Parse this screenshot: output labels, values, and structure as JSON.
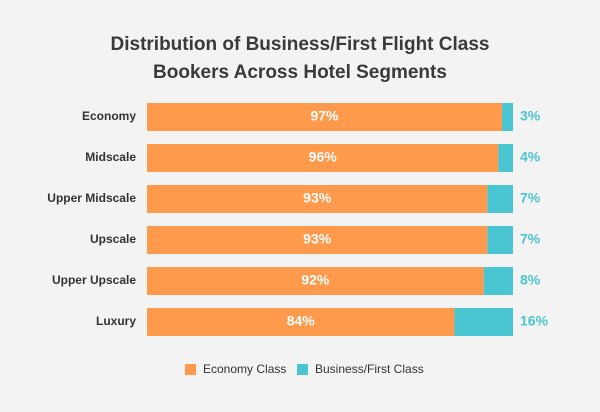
{
  "chart_data": {
    "type": "stacked-bar-horizontal",
    "title": [
      "Distribution of Business/First Flight Class",
      "Bookers Across Hotel Segments"
    ],
    "categories": [
      "Economy",
      "Midscale",
      "Upper Midscale",
      "Upscale",
      "Upper Upscale",
      "Luxury"
    ],
    "series": [
      {
        "name": "Economy Class",
        "color": "#ff9a4d",
        "values": [
          97,
          96,
          93,
          93,
          92,
          84
        ],
        "value_labels": [
          "97%",
          "96%",
          "93%",
          "93%",
          "92%",
          "84%"
        ]
      },
      {
        "name": "Business/First Class",
        "color": "#4ac6d2",
        "values": [
          3,
          4,
          7,
          7,
          8,
          16
        ],
        "value_labels": [
          "3%",
          "4%",
          "7%",
          "7%",
          "8%",
          "16%"
        ]
      }
    ],
    "xlim": [
      0,
      100
    ]
  }
}
